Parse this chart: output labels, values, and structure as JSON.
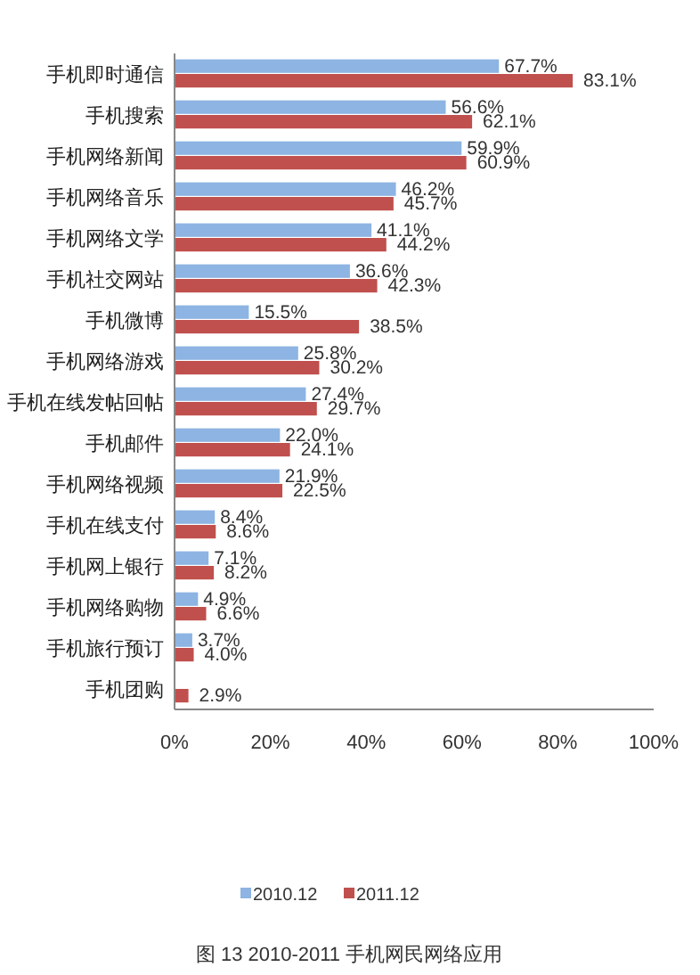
{
  "chart_data": {
    "type": "bar",
    "orientation": "horizontal",
    "categories": [
      "手机即时通信",
      "手机搜索",
      "手机网络新闻",
      "手机网络音乐",
      "手机网络文学",
      "手机社交网站",
      "手机微博",
      "手机网络游戏",
      "手机在线发帖回帖",
      "手机邮件",
      "手机网络视频",
      "手机在线支付",
      "手机网上银行",
      "手机网络购物",
      "手机旅行预订",
      "手机团购"
    ],
    "series": [
      {
        "name": "2010.12",
        "color": "#8db4e2",
        "values": [
          67.7,
          56.6,
          59.9,
          46.2,
          41.1,
          36.6,
          15.5,
          25.8,
          27.4,
          22.0,
          21.9,
          8.4,
          7.1,
          4.9,
          3.7,
          null
        ],
        "value_labels": [
          "67.7%",
          "56.6%",
          "59.9%",
          "46.2%",
          "41.1%",
          "36.6%",
          "15.5%",
          "25.8%",
          "27.4%",
          "22.0%",
          "21.9%",
          "8.4%",
          "7.1%",
          "4.9%",
          "3.7%",
          null
        ]
      },
      {
        "name": "2011.12",
        "color": "#c0504d",
        "values": [
          83.1,
          62.1,
          60.9,
          45.7,
          44.2,
          42.3,
          38.5,
          30.2,
          29.7,
          24.1,
          22.5,
          8.6,
          8.2,
          6.6,
          4.0,
          2.9
        ],
        "value_labels": [
          "83.1%",
          "62.1%",
          "60.9%",
          "45.7%",
          "44.2%",
          "42.3%",
          "38.5%",
          "30.2%",
          "29.7%",
          "24.1%",
          "22.5%",
          "8.6%",
          "8.2%",
          "6.6%",
          "4.0%",
          "2.9%"
        ]
      }
    ],
    "xlim": [
      0,
      100
    ],
    "xticks": [
      {
        "value": 0,
        "label": "0%"
      },
      {
        "value": 20,
        "label": "20%"
      },
      {
        "value": 40,
        "label": "40%"
      },
      {
        "value": 60,
        "label": "60%"
      },
      {
        "value": 80,
        "label": "80%"
      },
      {
        "value": 100,
        "label": "100%"
      }
    ],
    "legend": "bottom",
    "annotations": [
      "图 13 2010-2011 手机网民网络应用"
    ]
  }
}
